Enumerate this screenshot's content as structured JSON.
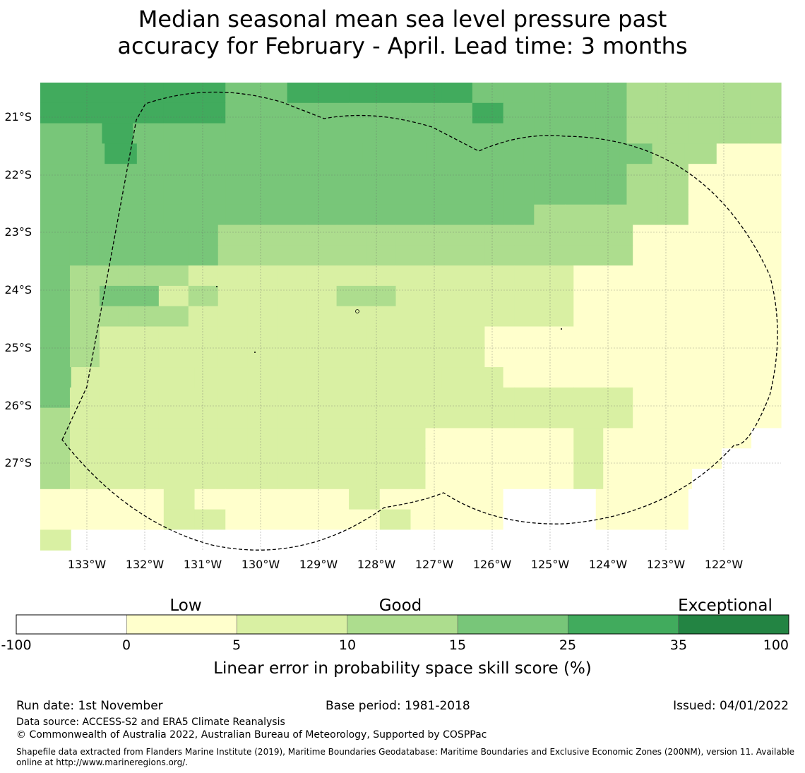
{
  "title": {
    "line1": "Median seasonal mean sea level pressure past",
    "line2": "accuracy for February - April. Lead time: 3 months"
  },
  "map": {
    "lat_labels": [
      "21°S",
      "22°S",
      "23°S",
      "24°S",
      "25°S",
      "26°S",
      "27°S"
    ],
    "lon_labels": [
      "133°W",
      "132°W",
      "131°W",
      "130°W",
      "129°W",
      "128°W",
      "127°W",
      "126°W",
      "125°W",
      "124°W",
      "123°W",
      "122°W"
    ],
    "cell_class_key": {
      "W": "-100 to 0",
      "Y": "0 to 5",
      "1": "5 to 10",
      "2": "10 to 15",
      "3": "15 to 25",
      "4": "25 to 35",
      "5": "35 to 100"
    },
    "grid_rows": [
      "444444334444443333322222",
      "444444333333334333322222",
      "334333333333333333322222",
      "334333333333333333322YY",
      "333333333333333333322YYY",
      "333333333333333333322YYY",
      "333333333333333322222YYY",
      "33333322222222222222YYYYY",
      "33333322222222222222YYYYY",
      "322221111111111111YYYYYYY",
      "323312111122111111YYYYYYY",
      "322221111111111111YYYYYYY",
      "321111111111111YYYYYYYYYY",
      "321111111111111YYYYYYYYYY",
      "311111111111111YYYYYYYYY",
      "31111111111111111111YYYYY",
      "21111111111111111111YYYYY",
      "2111111111111YYYYY1YYYYYW",
      "2111111111111YYYYY1YYYYWW",
      "2111111111111YYYYY1YYYWWW",
      "YYYY1YYYYY1YYYYWWWYYYWWW",
      "YYYY11YYYYY1YYYWWWYYYWWW",
      "1WWWWWWWWWWWWWWWWWWWWWWW"
    ]
  },
  "colorbar": {
    "ticks": [
      "-100",
      "0",
      "5",
      "10",
      "15",
      "25",
      "35",
      "100"
    ],
    "colors": [
      "#ffffff",
      "#ffffcc",
      "#d9f0a3",
      "#addd8e",
      "#78c679",
      "#41ab5d",
      "#238443"
    ],
    "categories": [
      "Low",
      "Good",
      "Exceptional"
    ],
    "label": "Linear error in probability space skill score (%)"
  },
  "footer": {
    "run_date": "Run date: 1st November",
    "base_period": "Base period: 1981-2018",
    "issued": "Issued: 04/01/2022",
    "data_source": "Data source: ACCESS-S2 and ERA5 Climate Reanalysis",
    "copyright": "© Commonwealth of Australia 2022, Australian Bureau of Meteorology, Supported by COSPPac",
    "shapefile": "Shapefile data extracted from Flanders Marine Institute (2019), Maritime Boundaries Geodatabase: Maritime Boundaries and Exclusive Economic Zones (200NM), version 11. Available online at http://www.marineregions.org/."
  }
}
